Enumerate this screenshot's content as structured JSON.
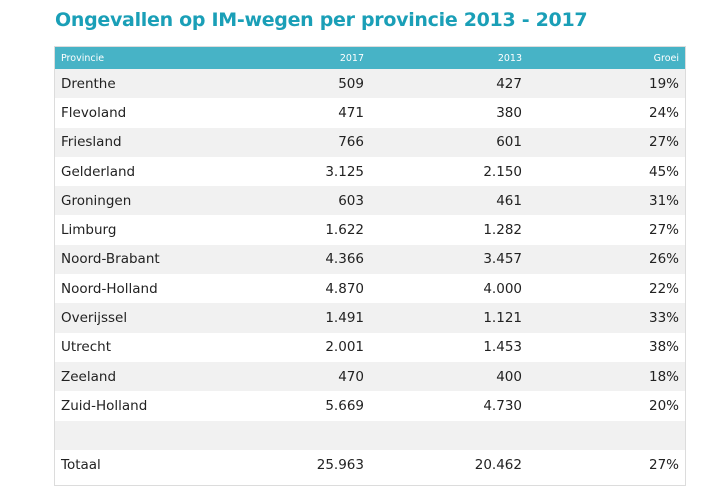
{
  "chart_data": {
    "type": "table",
    "title": "Ongevallen op IM-wegen per provincie 2013 - 2017",
    "columns": [
      "Provincie",
      "2017",
      "2013",
      "Groei"
    ],
    "rows": [
      {
        "provincie": "Drenthe",
        "y2017": "509",
        "y2013": "427",
        "groei": "19%"
      },
      {
        "provincie": "Flevoland",
        "y2017": "471",
        "y2013": "380",
        "groei": "24%"
      },
      {
        "provincie": "Friesland",
        "y2017": "766",
        "y2013": "601",
        "groei": "27%"
      },
      {
        "provincie": "Gelderland",
        "y2017": "3.125",
        "y2013": "2.150",
        "groei": "45%"
      },
      {
        "provincie": "Groningen",
        "y2017": "603",
        "y2013": "461",
        "groei": "31%"
      },
      {
        "provincie": "Limburg",
        "y2017": "1.622",
        "y2013": "1.282",
        "groei": "27%"
      },
      {
        "provincie": "Noord-Brabant",
        "y2017": "4.366",
        "y2013": "3.457",
        "groei": "26%"
      },
      {
        "provincie": "Noord-Holland",
        "y2017": "4.870",
        "y2013": "4.000",
        "groei": "22%"
      },
      {
        "provincie": "Overijssel",
        "y2017": "1.491",
        "y2013": "1.121",
        "groei": "33%"
      },
      {
        "provincie": "Utrecht",
        "y2017": "2.001",
        "y2013": "1.453",
        "groei": "38%"
      },
      {
        "provincie": "Zeeland",
        "y2017": "470",
        "y2013": "400",
        "groei": "18%"
      },
      {
        "provincie": "Zuid-Holland",
        "y2017": "5.669",
        "y2013": "4.730",
        "groei": "20%"
      }
    ],
    "total": {
      "provincie": "Totaal",
      "y2017": "25.963",
      "y2013": "20.462",
      "groei": "27%"
    }
  },
  "colors": {
    "title": "#1a9fb7",
    "header_bg": "#47b3c6",
    "row_alt_bg": "#f1f1f1"
  }
}
